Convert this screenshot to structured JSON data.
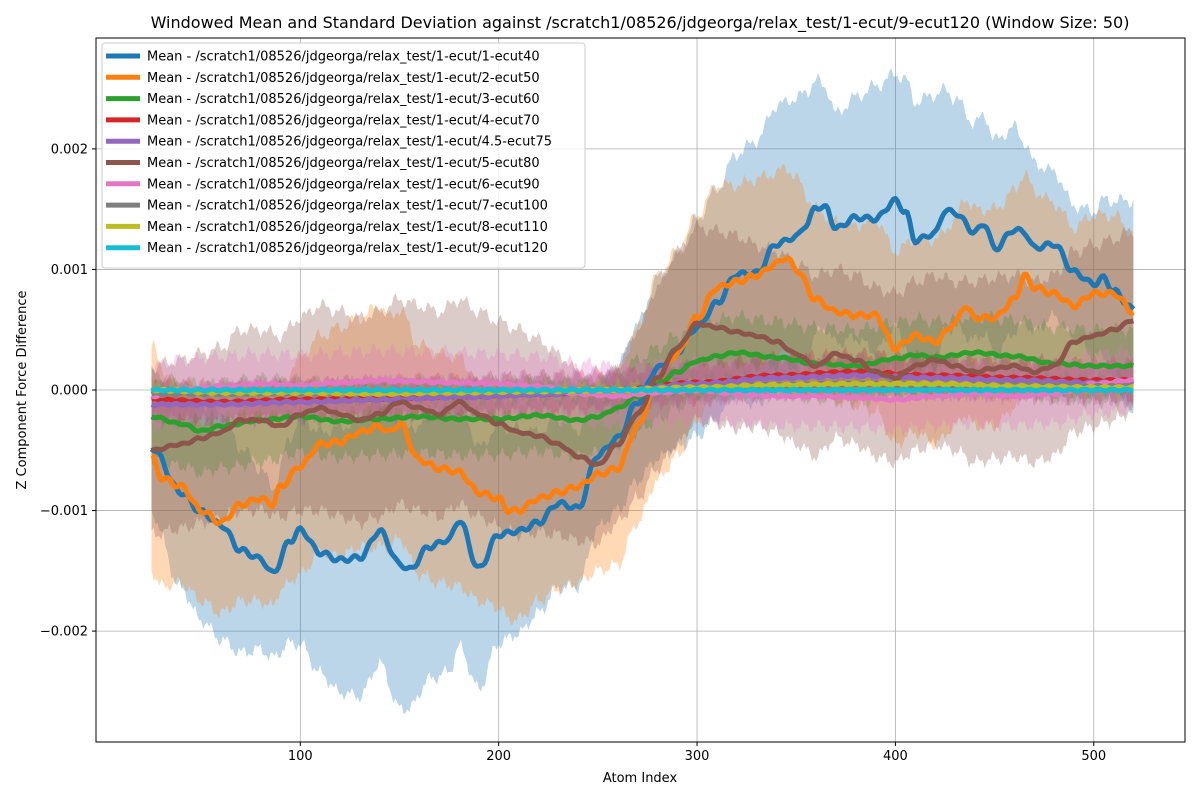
{
  "chart_data": {
    "type": "line",
    "title": "Windowed Mean and Standard Deviation against /scratch1/08526/jdgeorga/relax_test/1-ecut/9-ecut120 (Window Size: 50)",
    "xlabel": "Atom Index",
    "ylabel": "Z Component Force Difference",
    "xlim": [
      -3,
      546
    ],
    "ylim": [
      -0.00292,
      0.00292
    ],
    "xticks": [
      100,
      200,
      300,
      400,
      500
    ],
    "xtick_labels": [
      "100",
      "200",
      "300",
      "400",
      "500"
    ],
    "yticks": [
      -0.002,
      -0.001,
      0.0,
      0.001,
      0.002
    ],
    "ytick_labels": [
      "−0.002",
      "−0.001",
      "0.000",
      "0.001",
      "0.002"
    ],
    "grid": true,
    "legend_position": "top-left",
    "series": [
      {
        "name": "Mean - /scratch1/08526/jdgeorga/relax_test/1-ecut/1-ecut40",
        "color": "#1f77b4",
        "band_alpha": 0.3,
        "x": [
          25,
          40,
          50,
          60,
          70,
          80,
          86,
          95,
          100,
          110,
          120,
          130,
          140,
          150,
          155,
          165,
          175,
          180,
          190,
          200,
          210,
          220,
          230,
          240,
          250,
          260,
          270,
          280,
          290,
          300,
          310,
          320,
          330,
          340,
          350,
          355,
          360,
          365,
          370,
          380,
          390,
          400,
          405,
          410,
          420,
          425,
          430,
          440,
          445,
          450,
          460,
          465,
          470,
          480,
          490,
          500,
          505,
          510,
          520
        ],
        "values": [
          -0.00048,
          -0.00085,
          -0.00101,
          -0.00112,
          -0.00133,
          -0.0014,
          -0.00152,
          -0.00125,
          -0.00116,
          -0.00135,
          -0.00141,
          -0.00139,
          -0.00117,
          -0.00144,
          -0.00149,
          -0.0013,
          -0.00124,
          -0.00108,
          -0.00148,
          -0.0012,
          -0.00117,
          -0.0011,
          -0.00094,
          -0.00098,
          -0.00054,
          -0.0004,
          -0.0001,
          0.00018,
          0.00032,
          0.00052,
          0.00072,
          0.00096,
          0.00097,
          0.00121,
          0.00127,
          0.00137,
          0.00152,
          0.00151,
          0.00134,
          0.00143,
          0.00142,
          0.00157,
          0.00148,
          0.00124,
          0.0013,
          0.00149,
          0.00147,
          0.00131,
          0.00138,
          0.00117,
          0.00133,
          0.00131,
          0.00118,
          0.00121,
          0.00098,
          0.00088,
          0.00093,
          0.00082,
          0.00067
        ],
        "std": [
          0.00055,
          0.0008,
          0.0009,
          0.00095,
          0.00085,
          0.00075,
          0.0007,
          0.00085,
          0.00095,
          0.001,
          0.0011,
          0.00115,
          0.0011,
          0.0012,
          0.00115,
          0.0011,
          0.0011,
          0.00105,
          0.001,
          0.0009,
          0.00085,
          0.00075,
          0.0007,
          0.00065,
          0.0006,
          0.0006,
          0.00065,
          0.00075,
          0.0008,
          0.0009,
          0.00095,
          0.001,
          0.0011,
          0.00115,
          0.00115,
          0.0011,
          0.00105,
          0.001,
          0.00095,
          0.001,
          0.0011,
          0.00105,
          0.0011,
          0.00115,
          0.00115,
          0.001,
          0.00095,
          0.0009,
          0.0009,
          0.0009,
          0.00085,
          0.00075,
          0.0007,
          0.0006,
          0.00055,
          0.0006,
          0.00065,
          0.00075,
          0.0009
        ]
      },
      {
        "name": "Mean - /scratch1/08526/jdgeorga/relax_test/1-ecut/2-ecut50",
        "color": "#ff7f0e",
        "band_alpha": 0.3,
        "x": [
          25,
          30,
          40,
          50,
          60,
          70,
          80,
          86,
          90,
          100,
          110,
          120,
          130,
          140,
          145,
          150,
          160,
          170,
          180,
          190,
          200,
          205,
          210,
          220,
          230,
          240,
          250,
          260,
          270,
          280,
          290,
          300,
          310,
          320,
          330,
          340,
          345,
          350,
          360,
          370,
          380,
          390,
          400,
          410,
          420,
          430,
          435,
          440,
          450,
          460,
          465,
          470,
          480,
          490,
          500,
          510,
          520
        ],
        "values": [
          -0.00055,
          -0.00073,
          -0.0008,
          -0.001,
          -0.0011,
          -0.00095,
          -0.0009,
          -0.00095,
          -0.0008,
          -0.00063,
          -0.00045,
          -0.00043,
          -0.00035,
          -0.0003,
          -0.00035,
          -0.00028,
          -0.00058,
          -0.00065,
          -0.00068,
          -0.00085,
          -0.0009,
          -0.001,
          -0.001,
          -0.0009,
          -0.00085,
          -0.0008,
          -0.0007,
          -0.00065,
          -0.0003,
          0.0001,
          0.0003,
          0.0006,
          0.00085,
          0.0009,
          0.00095,
          0.00105,
          0.0011,
          0.001,
          0.00075,
          0.00065,
          0.00062,
          0.00062,
          0.00035,
          0.00045,
          0.0004,
          0.00055,
          0.0007,
          0.0006,
          0.0006,
          0.00075,
          0.00095,
          0.00085,
          0.0008,
          0.0007,
          0.0008,
          0.0008,
          0.00065
        ],
        "std": [
          0.00095,
          0.0009,
          0.0008,
          0.00075,
          0.00075,
          0.0008,
          0.00085,
          0.00085,
          0.00085,
          0.0009,
          0.0009,
          0.00095,
          0.00095,
          0.001,
          0.00095,
          0.00095,
          0.00095,
          0.00095,
          0.00095,
          0.0009,
          0.0009,
          0.0009,
          0.0009,
          0.00085,
          0.0008,
          0.0008,
          0.0008,
          0.0008,
          0.0008,
          0.00085,
          0.00085,
          0.00085,
          0.00085,
          0.0008,
          0.0008,
          0.00075,
          0.00075,
          0.00075,
          0.00075,
          0.00075,
          0.00075,
          0.0008,
          0.0008,
          0.0008,
          0.00085,
          0.00085,
          0.0009,
          0.0009,
          0.0009,
          0.0009,
          0.00085,
          0.0008,
          0.00075,
          0.00065,
          0.00065,
          0.00065,
          0.00065
        ]
      },
      {
        "name": "Mean - /scratch1/08526/jdgeorga/relax_test/1-ecut/3-ecut60",
        "color": "#2ca02c",
        "band_alpha": 0.3,
        "x": [
          25,
          40,
          50,
          60,
          80,
          100,
          120,
          140,
          160,
          180,
          200,
          220,
          240,
          250,
          260,
          270,
          280,
          290,
          300,
          310,
          320,
          340,
          360,
          380,
          400,
          410,
          420,
          440,
          460,
          480,
          500,
          520
        ],
        "values": [
          -0.00022,
          -0.00028,
          -0.00034,
          -0.0003,
          -0.00025,
          -0.00022,
          -0.00026,
          -0.00024,
          -0.00022,
          -0.00024,
          -0.00024,
          -0.00021,
          -0.00025,
          -0.00022,
          -0.00015,
          -5e-05,
          5e-05,
          0.00015,
          0.00024,
          0.00028,
          0.00031,
          0.00027,
          0.00022,
          0.0002,
          0.00026,
          0.00029,
          0.00027,
          0.00031,
          0.00028,
          0.00022,
          0.0002,
          0.0002
        ],
        "std": [
          0.00035,
          0.00035,
          0.00035,
          0.00035,
          0.00035,
          0.0003,
          0.0003,
          0.0003,
          0.0003,
          0.0003,
          0.0003,
          0.0003,
          0.0003,
          0.0003,
          0.0003,
          0.0003,
          0.0003,
          0.0003,
          0.0003,
          0.0003,
          0.0003,
          0.0003,
          0.0003,
          0.0003,
          0.0003,
          0.0003,
          0.0003,
          0.0003,
          0.0003,
          0.0003,
          0.0003,
          0.0003
        ]
      },
      {
        "name": "Mean - /scratch1/08526/jdgeorga/relax_test/1-ecut/4-ecut70",
        "color": "#d62728",
        "band_alpha": 0.3,
        "x": [
          25,
          60,
          100,
          140,
          180,
          220,
          260,
          300,
          340,
          380,
          420,
          460,
          500,
          520
        ],
        "values": [
          -8e-05,
          -0.0001,
          -8e-05,
          -7e-05,
          -5e-05,
          -3e-05,
          0.0,
          6e-05,
          0.00012,
          0.00015,
          0.00012,
          0.0001,
          8e-05,
          8e-05
        ],
        "std": [
          0.00015,
          0.00015,
          0.00015,
          0.00015,
          0.00015,
          0.00015,
          0.00015,
          0.00015,
          0.00015,
          0.00015,
          0.00015,
          0.00015,
          0.00015,
          0.00015
        ]
      },
      {
        "name": "Mean - /scratch1/08526/jdgeorga/relax_test/1-ecut/4.5-ecut75",
        "color": "#9467bd",
        "band_alpha": 0.3,
        "x": [
          25,
          60,
          100,
          140,
          180,
          220,
          260,
          300,
          340,
          380,
          420,
          460,
          500,
          520
        ],
        "values": [
          -0.00012,
          -0.00012,
          -0.0001,
          -8e-05,
          -6e-05,
          -4e-05,
          0.0,
          5e-05,
          0.0001,
          0.00012,
          0.0001,
          8e-05,
          6e-05,
          6e-05
        ],
        "std": [
          0.00015,
          0.00015,
          0.00015,
          0.00015,
          0.00015,
          0.00015,
          0.00015,
          0.00015,
          0.00015,
          0.00015,
          0.00015,
          0.00015,
          0.00015,
          0.00015
        ]
      },
      {
        "name": "Mean - /scratch1/08526/jdgeorga/relax_test/1-ecut/5-ecut80",
        "color": "#8c564b",
        "band_alpha": 0.3,
        "x": [
          25,
          40,
          50,
          60,
          70,
          80,
          90,
          100,
          110,
          120,
          130,
          140,
          150,
          160,
          170,
          180,
          190,
          200,
          210,
          220,
          230,
          240,
          250,
          260,
          270,
          280,
          290,
          300,
          310,
          320,
          330,
          340,
          350,
          360,
          370,
          380,
          390,
          400,
          410,
          420,
          430,
          440,
          450,
          460,
          470,
          480,
          490,
          500,
          510,
          520
        ],
        "values": [
          -0.0005,
          -0.00045,
          -0.0004,
          -0.00035,
          -0.00025,
          -0.00025,
          -0.0003,
          -0.0002,
          -0.00015,
          -0.0002,
          -0.00025,
          -0.0002,
          -0.0001,
          -0.00015,
          -0.0002,
          -0.0001,
          -0.0002,
          -0.00028,
          -0.00035,
          -0.00038,
          -0.00045,
          -0.00055,
          -0.00062,
          -0.00045,
          -0.0002,
          0.0001,
          0.00035,
          0.00055,
          0.00052,
          0.00048,
          0.00045,
          0.0004,
          0.0003,
          0.0002,
          0.0003,
          0.00025,
          0.00015,
          0.0001,
          0.0002,
          0.00025,
          0.0002,
          0.00015,
          0.00018,
          0.0002,
          0.00015,
          0.0002,
          0.0004,
          0.00045,
          0.0005,
          0.00058
        ],
        "std": [
          0.0007,
          0.0007,
          0.0007,
          0.0007,
          0.00075,
          0.00075,
          0.00075,
          0.0008,
          0.00085,
          0.00085,
          0.00085,
          0.00085,
          0.00085,
          0.00085,
          0.00085,
          0.00085,
          0.00085,
          0.00085,
          0.00085,
          0.0008,
          0.00075,
          0.0007,
          0.00065,
          0.00065,
          0.0007,
          0.00075,
          0.0008,
          0.0008,
          0.0008,
          0.0008,
          0.00075,
          0.00075,
          0.00075,
          0.00075,
          0.0007,
          0.0007,
          0.0007,
          0.0007,
          0.0007,
          0.0007,
          0.0007,
          0.00075,
          0.00075,
          0.00075,
          0.00075,
          0.00075,
          0.00075,
          0.00075,
          0.00075,
          0.00075
        ]
      },
      {
        "name": "Mean - /scratch1/08526/jdgeorga/relax_test/1-ecut/6-ecut90",
        "color": "#e377c2",
        "band_alpha": 0.3,
        "x": [
          25,
          40,
          60,
          80,
          100,
          120,
          140,
          160,
          180,
          200,
          220,
          240,
          260,
          280,
          300,
          320,
          340,
          360,
          380,
          400,
          420,
          440,
          460,
          480,
          500,
          520
        ],
        "values": [
          -5e-05,
          0.0,
          3e-05,
          5e-05,
          4e-05,
          6e-05,
          8e-05,
          7e-05,
          6e-05,
          5e-05,
          3e-05,
          -3e-05,
          -5e-05,
          -2e-05,
          0.0,
          -3e-05,
          -5e-05,
          -5e-05,
          -6e-05,
          -8e-05,
          -5e-05,
          -3e-05,
          -5e-05,
          -3e-05,
          5e-05,
          8e-05
        ],
        "std": [
          0.00025,
          0.00025,
          0.00025,
          0.00025,
          0.00025,
          0.00025,
          0.00025,
          0.00025,
          0.00025,
          0.00025,
          0.00025,
          0.00025,
          0.00025,
          0.00025,
          0.00025,
          0.00025,
          0.00025,
          0.00025,
          0.00025,
          0.00025,
          0.00025,
          0.00025,
          0.00025,
          0.00025,
          0.00025,
          0.00025
        ]
      },
      {
        "name": "Mean - /scratch1/08526/jdgeorga/relax_test/1-ecut/7-ecut100",
        "color": "#7f7f7f",
        "band_alpha": 0.3,
        "x": [
          25,
          60,
          100,
          140,
          180,
          220,
          260,
          300,
          340,
          380,
          420,
          460,
          500,
          520
        ],
        "values": [
          -3e-05,
          -3e-05,
          -2e-05,
          -1e-05,
          -2e-05,
          -1e-05,
          0.0,
          2e-05,
          4e-05,
          5e-05,
          4e-05,
          4e-05,
          3e-05,
          3e-05
        ],
        "std": [
          8e-05,
          8e-05,
          8e-05,
          8e-05,
          8e-05,
          8e-05,
          8e-05,
          8e-05,
          8e-05,
          8e-05,
          8e-05,
          8e-05,
          8e-05,
          8e-05
        ]
      },
      {
        "name": "Mean - /scratch1/08526/jdgeorga/relax_test/1-ecut/8-ecut110",
        "color": "#bcbd22",
        "band_alpha": 0.3,
        "x": [
          25,
          60,
          100,
          140,
          180,
          220,
          260,
          300,
          340,
          380,
          420,
          460,
          500,
          520
        ],
        "values": [
          0.0,
          -2e-05,
          -2e-05,
          -3e-05,
          -2e-05,
          -1e-05,
          0.0,
          2e-05,
          4e-05,
          5e-05,
          5e-05,
          3e-05,
          2e-05,
          2e-05
        ],
        "std": [
          4e-05,
          4e-05,
          4e-05,
          4e-05,
          4e-05,
          4e-05,
          4e-05,
          4e-05,
          4e-05,
          4e-05,
          4e-05,
          4e-05,
          4e-05,
          4e-05
        ]
      },
      {
        "name": "Mean - /scratch1/08526/jdgeorga/relax_test/1-ecut/9-ecut120",
        "color": "#17becf",
        "band_alpha": 0.3,
        "x": [
          25,
          520
        ],
        "values": [
          0.0,
          0.0
        ],
        "std": [
          0.0,
          0.0
        ]
      }
    ]
  }
}
